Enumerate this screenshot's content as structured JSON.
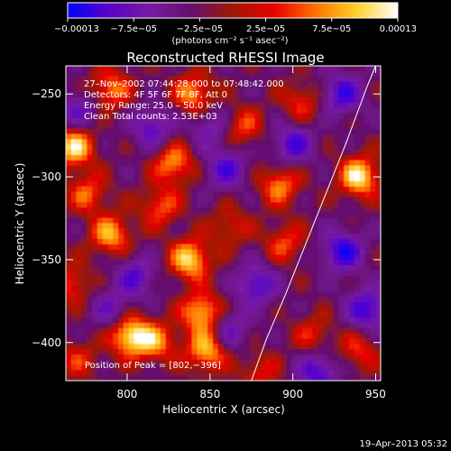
{
  "chart_data": {
    "type": "heatmap",
    "title": "Reconstructed RHESSI Image",
    "xlabel": "Heliocentric X (arcsec)",
    "ylabel": "Heliocentric Y (arcsec)",
    "xlim": [
      763,
      953
    ],
    "ylim": [
      -423,
      -233
    ],
    "xticks": [
      800,
      850,
      900,
      950
    ],
    "yticks": [
      -250,
      -300,
      -350,
      -400
    ],
    "colorbar": {
      "range": [
        -0.00013,
        0.00013
      ],
      "tick_labels": [
        "−0.00013",
        "−7.5e−05",
        "−2.5e−05",
        "2.5e−05",
        "7.5e−05",
        "0.00013"
      ],
      "units_label": "(photons cm⁻² s⁻¹ asec⁻²)",
      "colors": [
        "#0000ff",
        "#5a00c8",
        "#781aa0",
        "#640f6e",
        "#a01800",
        "#e80000",
        "#ff7000",
        "#ffd028",
        "#ffffff"
      ]
    },
    "annotations": [
      "27–Nov–2002 07:44:28.000 to 07:48:42.000",
      "Detectors: 4F 5F 6F 7F 8F, Att 0",
      "Energy Range: 25.0 – 50.0 keV",
      "Clean    Total counts: 2.53E+03"
    ],
    "peak_label": "Position of Peak = [802,−396]",
    "peak": {
      "x": 802,
      "y": -396
    },
    "limb_points": [
      [
        875,
        -423
      ],
      [
        884,
        -398
      ],
      [
        896,
        -370
      ],
      [
        908,
        -340
      ],
      [
        920,
        -310
      ],
      [
        932,
        -280
      ],
      [
        945,
        -245
      ],
      [
        950,
        -233
      ]
    ],
    "blobs": [
      {
        "x": 802,
        "y": -396,
        "v": 1.0
      },
      {
        "x": 768,
        "y": -282,
        "v": 0.9
      },
      {
        "x": 940,
        "y": -300,
        "v": 0.95
      },
      {
        "x": 790,
        "y": -247,
        "v": 0.65
      },
      {
        "x": 840,
        "y": -250,
        "v": 0.7
      },
      {
        "x": 828,
        "y": -292,
        "v": 0.7
      },
      {
        "x": 790,
        "y": -335,
        "v": 0.75
      },
      {
        "x": 838,
        "y": -350,
        "v": 0.9
      },
      {
        "x": 845,
        "y": -382,
        "v": 0.85
      },
      {
        "x": 848,
        "y": -405,
        "v": 0.8
      },
      {
        "x": 892,
        "y": -305,
        "v": 0.65
      },
      {
        "x": 895,
        "y": -340,
        "v": 0.5
      },
      {
        "x": 776,
        "y": -310,
        "v": 0.55
      },
      {
        "x": 820,
        "y": -318,
        "v": 0.55
      },
      {
        "x": 818,
        "y": -400,
        "v": 0.6
      },
      {
        "x": 905,
        "y": -255,
        "v": 0.45
      },
      {
        "x": 870,
        "y": -270,
        "v": 0.5
      },
      {
        "x": 766,
        "y": -365,
        "v": 0.5
      },
      {
        "x": 940,
        "y": -405,
        "v": 0.45
      },
      {
        "x": 912,
        "y": -395,
        "v": 0.4
      },
      {
        "x": 770,
        "y": -410,
        "v": 0.4
      },
      {
        "x": 862,
        "y": -330,
        "v": 0.4
      },
      {
        "x": 880,
        "y": -418,
        "v": 0.4
      },
      {
        "x": 815,
        "y": -270,
        "v": -0.6
      },
      {
        "x": 860,
        "y": -295,
        "v": -0.65
      },
      {
        "x": 805,
        "y": -360,
        "v": -0.6
      },
      {
        "x": 878,
        "y": -365,
        "v": -0.7
      },
      {
        "x": 900,
        "y": -280,
        "v": -0.7
      },
      {
        "x": 930,
        "y": -345,
        "v": -0.85
      },
      {
        "x": 945,
        "y": -380,
        "v": -0.8
      },
      {
        "x": 930,
        "y": -250,
        "v": -0.75
      },
      {
        "x": 770,
        "y": -260,
        "v": -0.5
      },
      {
        "x": 862,
        "y": -392,
        "v": -0.5
      },
      {
        "x": 915,
        "y": -418,
        "v": -0.7
      },
      {
        "x": 790,
        "y": -380,
        "v": -0.45
      },
      {
        "x": 850,
        "y": -270,
        "v": -0.45
      }
    ]
  },
  "footer": {
    "timestamp": "19–Apr–2013 05:32"
  }
}
